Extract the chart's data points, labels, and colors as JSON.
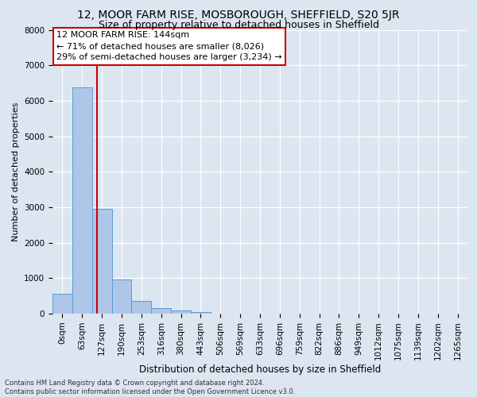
{
  "title1": "12, MOOR FARM RISE, MOSBOROUGH, SHEFFIELD, S20 5JR",
  "title2": "Size of property relative to detached houses in Sheffield",
  "xlabel": "Distribution of detached houses by size in Sheffield",
  "ylabel": "Number of detached properties",
  "footer1": "Contains HM Land Registry data © Crown copyright and database right 2024.",
  "footer2": "Contains public sector information licensed under the Open Government Licence v3.0.",
  "bar_labels": [
    "0sqm",
    "63sqm",
    "127sqm",
    "190sqm",
    "253sqm",
    "316sqm",
    "380sqm",
    "443sqm",
    "506sqm",
    "569sqm",
    "633sqm",
    "696sqm",
    "759sqm",
    "822sqm",
    "886sqm",
    "949sqm",
    "1012sqm",
    "1075sqm",
    "1139sqm",
    "1202sqm",
    "1265sqm"
  ],
  "bar_values": [
    570,
    6380,
    2950,
    960,
    360,
    160,
    90,
    55,
    0,
    0,
    0,
    0,
    0,
    0,
    0,
    0,
    0,
    0,
    0,
    0,
    0
  ],
  "bar_color": "#aec6e8",
  "bar_edge_color": "#5b9bd5",
  "annotation_line1": "12 MOOR FARM RISE: 144sqm",
  "annotation_line2": "← 71% of detached houses are smaller (8,026)",
  "annotation_line3": "29% of semi-detached houses are larger (3,234) →",
  "vline_color": "#cc0000",
  "annotation_box_color": "#ffffff",
  "annotation_box_edge": "#cc0000",
  "ylim": [
    0,
    8000
  ],
  "yticks": [
    0,
    1000,
    2000,
    3000,
    4000,
    5000,
    6000,
    7000,
    8000
  ],
  "bg_color": "#dce6f1",
  "plot_bg_color": "#dce6f1",
  "grid_color": "#ffffff",
  "title1_fontsize": 10,
  "title2_fontsize": 9,
  "xlabel_fontsize": 8.5,
  "ylabel_fontsize": 8,
  "annotation_fontsize": 8,
  "tick_fontsize": 7.5,
  "footer_fontsize": 6
}
